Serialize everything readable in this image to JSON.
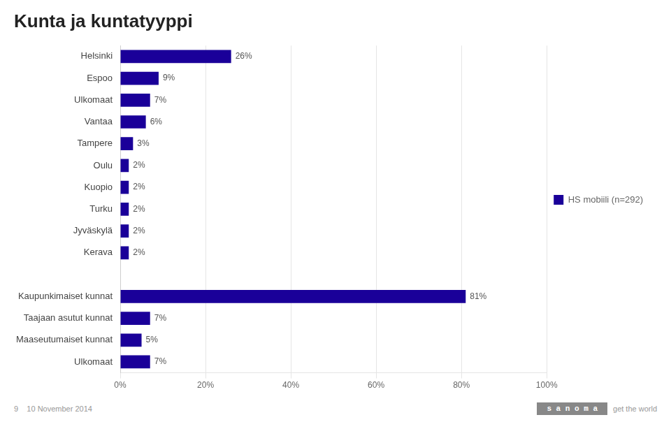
{
  "chart_data": {
    "type": "bar",
    "orientation": "horizontal",
    "title": "Kunta ja kuntatyyppi",
    "categories": [
      "Helsinki",
      "Espoo",
      "Ulkomaat",
      "Vantaa",
      "Tampere",
      "Oulu",
      "Kuopio",
      "Turku",
      "Jyväskylä",
      "Kerava",
      null,
      "Kaupunkimaiset kunnat",
      "Taajaan asutut kunnat",
      "Maaseutumaiset kunnat",
      "Ulkomaat"
    ],
    "series": [
      {
        "name": "HS mobiili (n=292)",
        "color": "#1a0099",
        "values": [
          26,
          9,
          7,
          6,
          3,
          2,
          2,
          2,
          2,
          2,
          null,
          81,
          7,
          5,
          7
        ],
        "value_labels": [
          "26%",
          "9%",
          "7%",
          "6%",
          "3%",
          "2%",
          "2%",
          "2%",
          "2%",
          "2%",
          null,
          "81%",
          "7%",
          "5%",
          "7%"
        ]
      }
    ],
    "xlim": [
      0,
      100
    ],
    "xticks": [
      {
        "value": 0,
        "label": "0%"
      },
      {
        "value": 20,
        "label": "20%"
      },
      {
        "value": 40,
        "label": "40%"
      },
      {
        "value": 60,
        "label": "60%"
      },
      {
        "value": 80,
        "label": "80%"
      },
      {
        "value": 100,
        "label": "100%"
      }
    ],
    "grid": true,
    "legend": "right",
    "data_labels": true,
    "annotations": [
      "9    10 November 2014",
      "s a n o m a",
      "get the world"
    ]
  }
}
